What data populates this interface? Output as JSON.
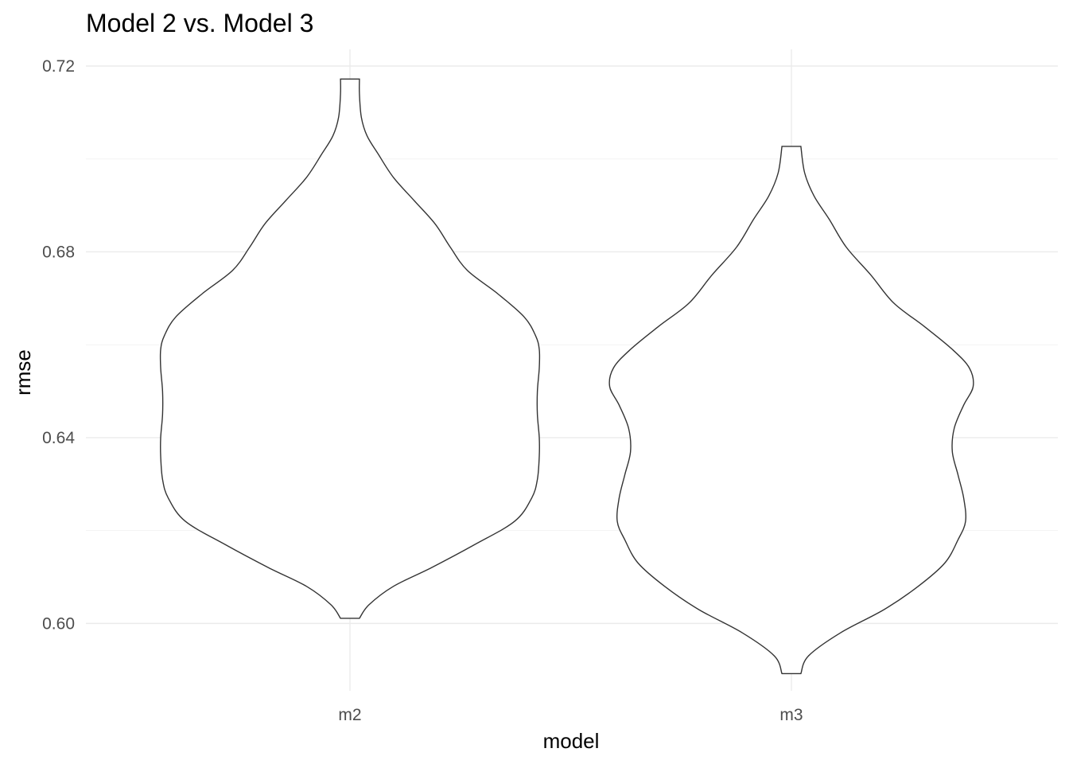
{
  "chart_data": {
    "type": "violin",
    "title": "Model 2 vs. Model 3",
    "xlabel": "model",
    "ylabel": "rmse",
    "categories": [
      "m2",
      "m3"
    ],
    "ylim": [
      0.5855,
      0.7236
    ],
    "yticks": [
      0.6,
      0.64,
      0.68,
      0.72
    ],
    "ytick_labels": [
      "0.60",
      "0.64",
      "0.68",
      "0.72"
    ],
    "grid": true,
    "legend": "none",
    "violins": [
      {
        "category": "m2",
        "y": [
          0.6011,
          0.604,
          0.608,
          0.612,
          0.617,
          0.622,
          0.627,
          0.631,
          0.636,
          0.64,
          0.645,
          0.65,
          0.655,
          0.659,
          0.662,
          0.666,
          0.671,
          0.676,
          0.681,
          0.686,
          0.691,
          0.696,
          0.701,
          0.705,
          0.709,
          0.714,
          0.7172
        ],
        "density": [
          0.05,
          0.1,
          0.23,
          0.43,
          0.66,
          0.87,
          0.96,
          0.99,
          1.0,
          1.0,
          0.99,
          0.99,
          1.0,
          1.0,
          0.98,
          0.92,
          0.78,
          0.62,
          0.53,
          0.45,
          0.34,
          0.23,
          0.15,
          0.09,
          0.06,
          0.05,
          0.05
        ]
      },
      {
        "category": "m3",
        "y": [
          0.5892,
          0.593,
          0.598,
          0.603,
          0.608,
          0.613,
          0.618,
          0.622,
          0.627,
          0.632,
          0.637,
          0.642,
          0.647,
          0.651,
          0.655,
          0.659,
          0.664,
          0.669,
          0.675,
          0.681,
          0.687,
          0.692,
          0.697,
          0.7027
        ],
        "density": [
          0.05,
          0.09,
          0.26,
          0.49,
          0.67,
          0.81,
          0.88,
          0.92,
          0.91,
          0.88,
          0.85,
          0.86,
          0.91,
          0.96,
          0.94,
          0.85,
          0.7,
          0.54,
          0.42,
          0.29,
          0.2,
          0.12,
          0.07,
          0.05
        ]
      }
    ]
  }
}
